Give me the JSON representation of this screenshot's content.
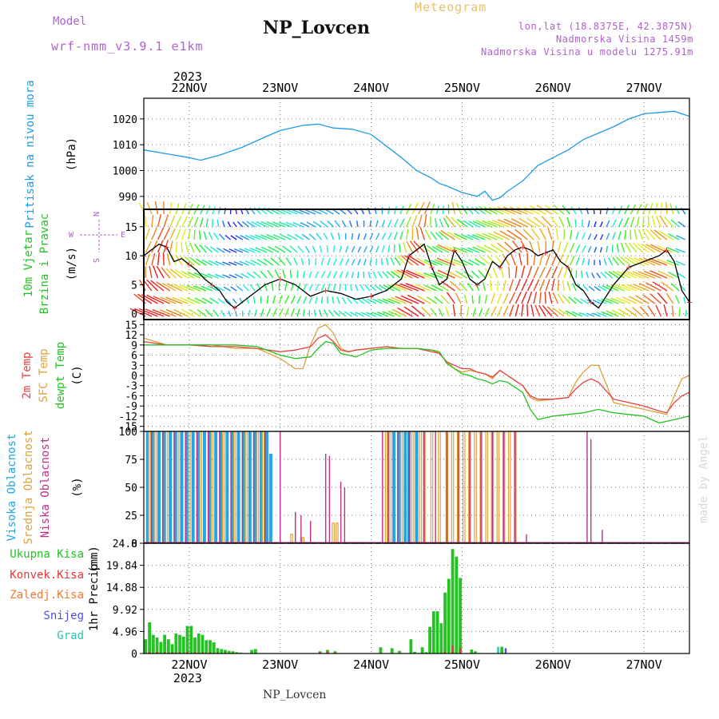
{
  "header": {
    "model_label": "Model",
    "model_name": "wrf-nmm_v3.9.1 e1km",
    "title": "NP_Lovcen",
    "meteogram": "Meteogram",
    "lonlat": "lon,lat (18.8375E, 42.3875N)",
    "altitude": "Nadmorska Visina 1459m",
    "model_altitude": "Nadmorska Visina u modelu 1275.91m",
    "footer": "NP_Lovcen",
    "credit": "made by Angel",
    "year": "2023"
  },
  "colors": {
    "pressure": "#1e9be6",
    "temp2m": "#e64040",
    "sfctemp": "#dfa23a",
    "dewpt": "#22c322",
    "high_cloud": "#22a6e6",
    "mid_cloud": "#dfa23a",
    "low_cloud": "#c0308a",
    "total_precip": "#22c322",
    "convective": "#e63838",
    "frozen": "#ef7a30",
    "snow": "#5050e0",
    "hail": "#30c0b0",
    "wind_label": "#22c322",
    "cloud_label_high": "#22a6e6",
    "cloud_label_mid": "#dfa23a",
    "cloud_label_low": "#c0308a",
    "header_purple": "#b060d0",
    "meteogram_color": "#e6c070"
  },
  "chart_data": [
    {
      "type": "line",
      "panel": "pressure",
      "ylabel": "Pritisak na nivou mora",
      "unit": "(hPa)",
      "ylim": [
        985,
        1028
      ],
      "yticks": [
        990,
        1000,
        1010,
        1020
      ],
      "x_unit": "hours from 2023-11-21 12 UTC",
      "xlim": [
        0,
        144
      ],
      "date_labels": [
        "22NOV",
        "23NOV",
        "24NOV",
        "25NOV",
        "26NOV",
        "27NOV"
      ],
      "date_hours": [
        12,
        36,
        60,
        84,
        108,
        132
      ],
      "x": [
        0,
        6,
        12,
        15,
        20,
        26,
        32,
        36,
        42,
        46,
        50,
        55,
        60,
        64,
        68,
        72,
        76,
        78,
        80,
        84,
        88,
        90,
        92,
        94,
        96,
        100,
        104,
        108,
        112,
        116,
        120,
        124,
        128,
        132,
        136,
        140,
        144
      ],
      "values": [
        1008,
        1006.5,
        1005,
        1004,
        1006,
        1009,
        1013,
        1015.5,
        1017.5,
        1018,
        1016.5,
        1016,
        1014,
        1009.5,
        1005,
        1000,
        997,
        995,
        994,
        991.5,
        990,
        992,
        988.5,
        989.5,
        992,
        996,
        1002,
        1005,
        1008,
        1012,
        1014.5,
        1017,
        1020,
        1022,
        1022.5,
        1023,
        1021
      ]
    },
    {
      "type": "line",
      "panel": "wind",
      "ylabel_lines": [
        "10m Vjetar",
        "Brzina i Pravac"
      ],
      "unit": "(m/s)",
      "compass": [
        "N",
        "E",
        "S",
        "W"
      ],
      "ylim": [
        -1,
        18
      ],
      "yticks": [
        0,
        5,
        10,
        15
      ],
      "xlim": [
        0,
        144
      ],
      "series": [
        {
          "name": "speed",
          "x": [
            0,
            2,
            4,
            6,
            8,
            10,
            12,
            14,
            16,
            18,
            20,
            22,
            24,
            28,
            32,
            36,
            40,
            44,
            48,
            52,
            56,
            60,
            64,
            68,
            70,
            72,
            74,
            76,
            78,
            80,
            82,
            84,
            86,
            88,
            90,
            92,
            94,
            96,
            98,
            100,
            102,
            104,
            106,
            108,
            110,
            112,
            114,
            116,
            118,
            120,
            124,
            128,
            132,
            136,
            138,
            140,
            142,
            144
          ],
          "values": [
            10,
            11,
            12,
            11.5,
            9,
            9.5,
            8.5,
            7.5,
            6,
            5,
            4,
            2,
            1,
            3,
            5,
            6,
            5,
            3,
            4,
            3.5,
            2.5,
            3,
            4,
            6,
            10,
            11,
            12,
            8,
            5,
            6,
            11,
            9,
            6,
            5,
            6,
            9,
            8,
            10,
            11,
            11.5,
            11,
            10,
            10.5,
            11,
            9,
            8,
            5,
            4,
            2,
            1,
            5,
            8,
            9,
            10,
            11,
            9,
            4,
            2
          ]
        }
      ]
    },
    {
      "type": "line",
      "panel": "temperature",
      "ylabel_lines": [
        "2m Temp",
        "SFC Temp",
        "dewpt Temp"
      ],
      "unit": "(C)",
      "ylim": [
        -16.5,
        16.5
      ],
      "yticks": [
        -15,
        -12,
        -9,
        -6,
        -3,
        0,
        3,
        6,
        9,
        12,
        15
      ],
      "xlim": [
        0,
        144
      ],
      "series": [
        {
          "name": "2m Temp",
          "x": [
            0,
            6,
            12,
            18,
            24,
            30,
            36,
            40,
            44,
            46,
            48,
            50,
            52,
            54,
            56,
            60,
            64,
            68,
            72,
            76,
            78,
            80,
            82,
            84,
            86,
            88,
            90,
            92,
            94,
            96,
            100,
            102,
            104,
            108,
            112,
            114,
            116,
            118,
            120,
            124,
            128,
            132,
            136,
            138,
            140,
            142,
            144
          ],
          "values": [
            10,
            9,
            9,
            8.5,
            8.5,
            8,
            7,
            7.5,
            8.5,
            11,
            12,
            10,
            7.5,
            7,
            7.5,
            8,
            8.5,
            8,
            8,
            7,
            6.5,
            4,
            3,
            2,
            2,
            1,
            0.5,
            -0.5,
            1.5,
            0,
            -3,
            -6,
            -7,
            -7,
            -6.5,
            -4,
            -2,
            -1,
            -2,
            -7,
            -8,
            -9,
            -10.5,
            -11,
            -8,
            -6,
            -5
          ]
        },
        {
          "name": "SFC Temp",
          "x": [
            0,
            6,
            12,
            18,
            24,
            30,
            36,
            40,
            42,
            44,
            46,
            48,
            50,
            52,
            54,
            56,
            60,
            64,
            68,
            72,
            76,
            78,
            80,
            82,
            84,
            86,
            88,
            90,
            92,
            94,
            96,
            100,
            102,
            104,
            108,
            112,
            114,
            116,
            118,
            120,
            124,
            128,
            132,
            136,
            138,
            140,
            142,
            144
          ],
          "values": [
            11,
            9,
            9,
            9,
            8,
            8,
            5,
            2,
            2,
            9,
            14,
            15,
            12.5,
            8,
            7,
            7.5,
            8,
            8.5,
            8,
            8,
            7.5,
            6.5,
            4,
            2,
            1,
            1.5,
            1,
            0.5,
            -1,
            1.5,
            0,
            -3,
            -6.5,
            -7.5,
            -7,
            -6.5,
            -2,
            1,
            3,
            3,
            -8,
            -9,
            -10,
            -11,
            -11.5,
            -6,
            -1,
            0
          ]
        },
        {
          "name": "dewpt Temp",
          "x": [
            0,
            6,
            12,
            18,
            24,
            30,
            36,
            40,
            44,
            46,
            48,
            50,
            52,
            54,
            56,
            60,
            64,
            68,
            72,
            76,
            78,
            80,
            82,
            84,
            86,
            88,
            90,
            92,
            94,
            96,
            100,
            102,
            104,
            108,
            112,
            116,
            120,
            124,
            128,
            132,
            136,
            140,
            142,
            144
          ],
          "values": [
            9,
            9,
            9,
            9,
            9,
            8.5,
            6,
            5,
            5.5,
            8,
            10,
            9.5,
            6.5,
            6,
            5.5,
            7.5,
            8,
            8,
            8,
            7.5,
            7,
            3.5,
            2,
            0.5,
            0,
            -1,
            -1.5,
            -2.5,
            -1.5,
            -2,
            -5,
            -10,
            -13,
            -12,
            -11.5,
            -11,
            -10,
            -11,
            -11.5,
            -12,
            -14,
            -13,
            -12.5,
            -12
          ]
        }
      ]
    },
    {
      "type": "bar",
      "panel": "cloud",
      "ylabel_lines": [
        "Visoka Oblacnost",
        "Srednja Oblacnost",
        "Niska Oblacnost"
      ],
      "unit": "(%)",
      "ylim": [
        0,
        100
      ],
      "yticks": [
        0,
        25,
        50,
        75,
        100
      ],
      "xlim": [
        0,
        144
      ],
      "series": [
        {
          "name": "Visoka Oblacnost",
          "x": [
            1,
            2.5,
            4,
            5.5,
            7,
            8.5,
            10,
            11.5,
            13,
            14.5,
            16,
            17.5,
            19,
            20.5,
            22,
            23.5,
            25,
            26.5,
            28,
            29.5,
            31,
            32.5,
            33.5,
            66,
            67.5,
            69,
            70,
            72
          ],
          "values": [
            100,
            100,
            100,
            100,
            100,
            100,
            100,
            100,
            100,
            100,
            100,
            100,
            100,
            100,
            100,
            100,
            100,
            100,
            100,
            100,
            100,
            100,
            80,
            100,
            100,
            100,
            100,
            100
          ]
        },
        {
          "name": "Srednja Oblacnost",
          "x": [
            1.5,
            3,
            6,
            9,
            12,
            15,
            18,
            21,
            24,
            27,
            30,
            31.5,
            39,
            42,
            50,
            51,
            64,
            65,
            68,
            71,
            73,
            74,
            76,
            78,
            80,
            81.5,
            83,
            84.5,
            86,
            87.5,
            89,
            90.5,
            92,
            93.5,
            95,
            96.5,
            98
          ],
          "values": [
            100,
            100,
            100,
            100,
            100,
            100,
            100,
            100,
            100,
            100,
            100,
            100,
            8,
            5,
            18,
            18,
            100,
            100,
            100,
            100,
            100,
            100,
            100,
            100,
            100,
            100,
            100,
            100,
            100,
            100,
            100,
            100,
            100,
            100,
            100,
            100,
            100
          ]
        },
        {
          "name": "Niska Oblacnost",
          "x": [
            2,
            5,
            8,
            11,
            14,
            17,
            20,
            23,
            26,
            29,
            32,
            36,
            40,
            41.5,
            44,
            48,
            49,
            52,
            53,
            63,
            64.5,
            67,
            70,
            74,
            77,
            80,
            83,
            86,
            89,
            92,
            95,
            98,
            101,
            117,
            118,
            121
          ],
          "values": [
            100,
            100,
            100,
            100,
            100,
            100,
            100,
            100,
            100,
            100,
            100,
            100,
            28,
            25,
            20,
            80,
            78,
            55,
            50,
            100,
            100,
            100,
            100,
            100,
            100,
            100,
            100,
            100,
            100,
            100,
            100,
            100,
            8,
            100,
            93,
            12
          ]
        }
      ]
    },
    {
      "type": "bar",
      "panel": "precip",
      "legend": [
        "Ukupna Kisa",
        "Konvek.Kisa",
        "Zaledj.Kisa",
        "Snijeg",
        "Grad"
      ],
      "ylabel": "1hr Precip",
      "unit": "(mm)",
      "ylim": [
        0,
        24.8
      ],
      "yticks": [
        0,
        4.96,
        9.92,
        14.88,
        19.84,
        24.8
      ],
      "ytick_labels": [
        "0",
        "4.96",
        "9.92",
        "14.88",
        "19.84",
        "24.8"
      ],
      "xlim": [
        0,
        144
      ],
      "series": [
        {
          "name": "Ukupna Kisa",
          "x": [
            0.5,
            1.5,
            2.5,
            3.5,
            4.5,
            5.5,
            6.5,
            7.5,
            8.5,
            9.5,
            10.5,
            11.5,
            12.5,
            13.5,
            14.5,
            15.5,
            16.5,
            17.5,
            18.5,
            19.5,
            20.5,
            21.5,
            22.5,
            23.5,
            24.5,
            25.5,
            28.5,
            29.5,
            46.5,
            48.5,
            50.5,
            62.5,
            65.5,
            67.5,
            70.5,
            71.5,
            73.5,
            74.5,
            75.5,
            76.5,
            77.5,
            78.5,
            79.5,
            80.5,
            81.5,
            82.5,
            83.5,
            86.5,
            87.5,
            94.5
          ],
          "values": [
            3.2,
            7,
            4.2,
            3.6,
            2.6,
            4.2,
            3.2,
            2.1,
            4.5,
            4.2,
            3.8,
            6.2,
            6.2,
            3.6,
            4.5,
            4.2,
            3,
            3,
            2.5,
            1.2,
            1,
            0.8,
            0.6,
            0.5,
            0.3,
            0.2,
            0.8,
            1,
            0.5,
            0.8,
            0.5,
            1.4,
            1.2,
            0.6,
            3.2,
            0.4,
            1.4,
            0.3,
            6,
            9.5,
            9.5,
            6.8,
            13.7,
            16.8,
            23.5,
            21.8,
            17,
            0.9,
            0.5,
            1.5
          ]
        },
        {
          "name": "Konvek.Kisa",
          "x": [
            1.5,
            3.5,
            5.5,
            7.5,
            9.5,
            11.5,
            13.5,
            15.5,
            17.5,
            19.5,
            21.5,
            23.5,
            46.5,
            48.5,
            50.5,
            79.5,
            81.5,
            83.5
          ],
          "values": [
            0.5,
            0.4,
            0.3,
            0.3,
            0.3,
            0.4,
            0.3,
            0.3,
            0.3,
            0.2,
            0.2,
            0.2,
            0.3,
            0.5,
            0.3,
            0.5,
            1.8,
            1.2
          ]
        },
        {
          "name": "Snijeg",
          "x": [
            95.5
          ],
          "values": [
            1.2
          ]
        },
        {
          "name": "Grad",
          "x": [
            93.5
          ],
          "values": [
            1.5
          ]
        }
      ]
    }
  ]
}
